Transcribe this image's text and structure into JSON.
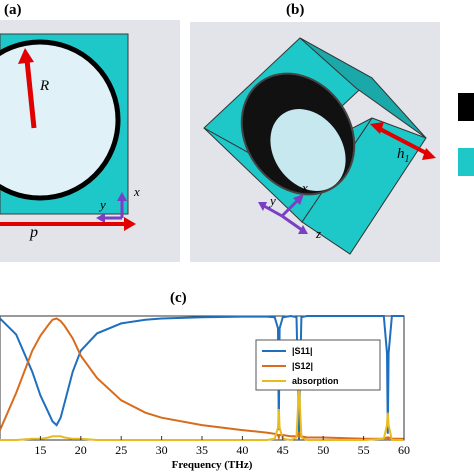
{
  "panels": {
    "a": {
      "label": "(a)",
      "symbol_R": "R",
      "symbol_p": "p",
      "axis_x": "x",
      "axis_y": "y"
    },
    "b": {
      "label": "(b)",
      "symbol_h": "h",
      "symbol_h_sub": "1",
      "axis_x": "x",
      "axis_y": "y",
      "axis_z": "z"
    },
    "c": {
      "label": "(c)"
    }
  },
  "colors": {
    "metal": "#000000",
    "dielectric": "#1ec8c8",
    "arrow": "#e00000",
    "axis_arrow": "#7a3fc4",
    "s11": "#1f6fbf",
    "s12": "#d96b1c",
    "absorption": "#e8bb1e"
  },
  "chart_data": {
    "type": "line",
    "title": "",
    "xlabel": "Frequency (THz)",
    "ylabel": "",
    "xlim": [
      10,
      60
    ],
    "ylim": [
      0,
      1
    ],
    "x_ticks": [
      "15",
      "20",
      "25",
      "30",
      "35",
      "40",
      "45",
      "50",
      "55",
      "60"
    ],
    "x": [
      10,
      12,
      14,
      15,
      16,
      16.5,
      17,
      17.5,
      18,
      19,
      20,
      22,
      25,
      28,
      30,
      35,
      40,
      43,
      44,
      44.4,
      44.5,
      44.6,
      45,
      46,
      46.7,
      46.9,
      47,
      47.1,
      47.3,
      48,
      50,
      55,
      57.5,
      57.9,
      58,
      58.1,
      58.5,
      60
    ],
    "series": [
      {
        "name": "|S11|",
        "values": [
          0.98,
          0.85,
          0.55,
          0.36,
          0.22,
          0.15,
          0.12,
          0.18,
          0.3,
          0.55,
          0.72,
          0.86,
          0.94,
          0.97,
          0.98,
          0.99,
          0.995,
          0.995,
          0.99,
          0.9,
          0.08,
          0.9,
          0.99,
          1.0,
          0.99,
          0.4,
          0.0,
          0.4,
          0.99,
          1.0,
          1.0,
          1.0,
          1.0,
          0.7,
          0.05,
          0.7,
          1.0,
          1.0
        ]
      },
      {
        "name": "|S12|",
        "values": [
          0.08,
          0.38,
          0.72,
          0.84,
          0.93,
          0.97,
          0.98,
          0.96,
          0.92,
          0.82,
          0.68,
          0.5,
          0.32,
          0.22,
          0.18,
          0.12,
          0.08,
          0.06,
          0.05,
          0.04,
          0.02,
          0.04,
          0.04,
          0.03,
          0.03,
          0.05,
          0.02,
          0.05,
          0.03,
          0.02,
          0.02,
          0.01,
          0.01,
          0.02,
          0.01,
          0.02,
          0.01,
          0.01
        ]
      },
      {
        "name": "absorption",
        "values": [
          0.0,
          0.0,
          0.01,
          0.01,
          0.02,
          0.03,
          0.03,
          0.03,
          0.02,
          0.01,
          0.01,
          0.0,
          0.0,
          0.0,
          0.0,
          0.0,
          0.0,
          0.0,
          0.01,
          0.1,
          0.25,
          0.1,
          0.01,
          0.0,
          0.02,
          0.3,
          0.47,
          0.3,
          0.02,
          0.0,
          0.0,
          0.0,
          0.01,
          0.12,
          0.22,
          0.12,
          0.0,
          0.0
        ]
      }
    ],
    "legend_position": "center-right",
    "grid": false
  }
}
